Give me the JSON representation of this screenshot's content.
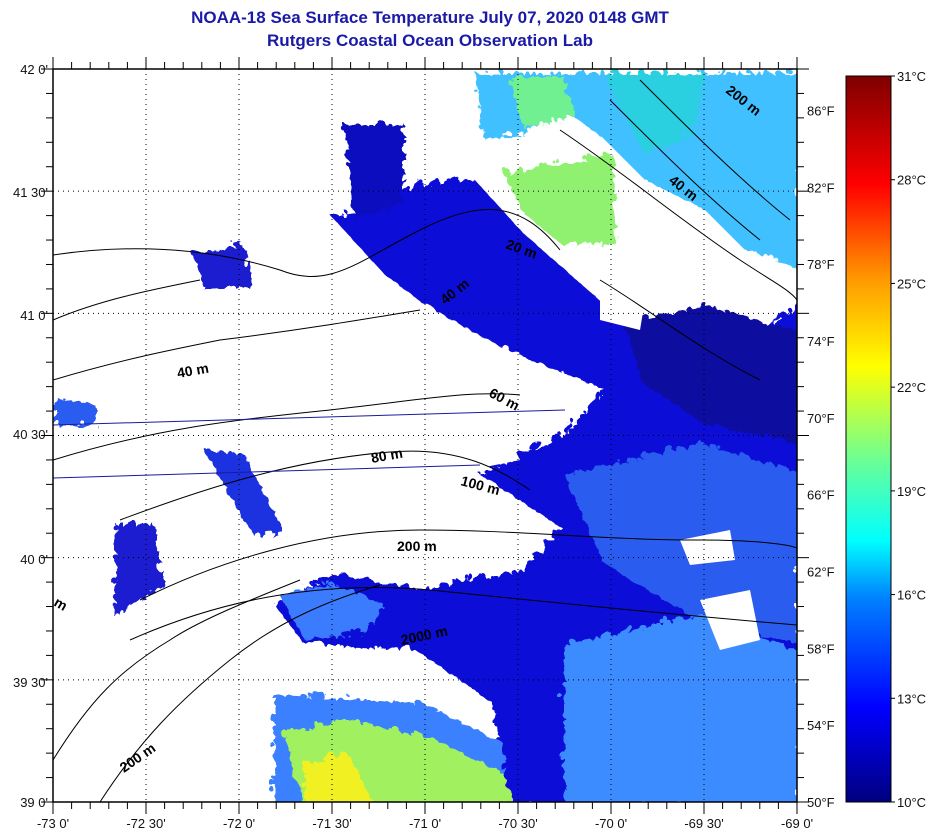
{
  "title": {
    "line1": "NOAA-18 Sea Surface Temperature July 07, 2020 0148 GMT",
    "line2": "Rutgers Coastal Ocean Observation Lab"
  },
  "map": {
    "lat_labels": [
      "42 0'",
      "41 30'",
      "41 0'",
      "40 30'",
      "40 0'",
      "39 30'",
      "39 0'"
    ],
    "lon_labels": [
      "-73 0'",
      "-72 30'",
      "-72 0'",
      "-71 30'",
      "-71 0'",
      "-70 30'",
      "-70 0'",
      "-69 30'",
      "-69 0'"
    ],
    "fahrenheit_labels": [
      "86°F",
      "82°F",
      "78°F",
      "74°F",
      "70°F",
      "66°F",
      "62°F",
      "58°F",
      "54°F",
      "50°F"
    ],
    "contour_labels": [
      "200 m",
      "40 m",
      "20 m",
      "40 m",
      "40 m",
      "60 m",
      "80 m",
      "100 m",
      "200 m",
      "2000 m",
      "200 m",
      "m"
    ],
    "lat_range": [
      39,
      42
    ],
    "lon_range": [
      -73,
      -69
    ]
  },
  "colorbar": {
    "labels": [
      "31°C",
      "28°C",
      "25°C",
      "22°C",
      "19°C",
      "16°C",
      "13°C",
      "10°C"
    ],
    "range_c": [
      10,
      31
    ],
    "colors": [
      "#00007f",
      "#0000ff",
      "#0080ff",
      "#00ffff",
      "#80ff80",
      "#ffff00",
      "#ff8000",
      "#ff0000",
      "#7f0000"
    ]
  }
}
